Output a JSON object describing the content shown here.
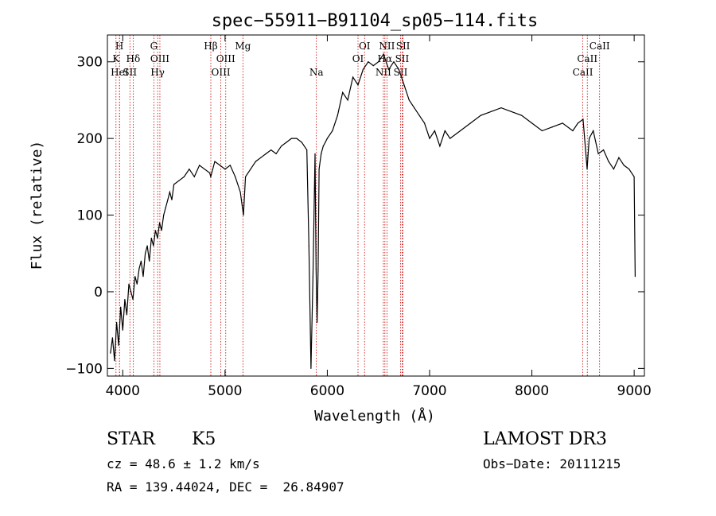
{
  "chart_data": {
    "type": "line",
    "title": "spec−55911−B91104_sp05−114.fits",
    "xlabel": "Wavelength (Å)",
    "ylabel": "Flux (relative)",
    "xlim": [
      3850,
      9100
    ],
    "ylim": [
      -110,
      335
    ],
    "xticks": [
      4000,
      5000,
      6000,
      7000,
      8000,
      9000
    ],
    "yticks": [
      -100,
      0,
      100,
      200,
      300
    ],
    "line_color": "#000000",
    "marker_color": "#cc0000",
    "series": [
      {
        "x": [
          3880,
          3900,
          3920,
          3940,
          3960,
          3980,
          4000,
          4020,
          4040,
          4060,
          4080,
          4100,
          4120,
          4140,
          4160,
          4180,
          4200,
          4220,
          4240,
          4260,
          4280,
          4300,
          4320,
          4340,
          4360,
          4380,
          4400,
          4420,
          4440,
          4460,
          4480,
          4500,
          4550,
          4600,
          4650,
          4700,
          4750,
          4800,
          4850,
          4860,
          4900,
          4950,
          5000,
          5050,
          5100,
          5150,
          5170,
          5180,
          5200,
          5250,
          5300,
          5350,
          5400,
          5450,
          5500,
          5550,
          5600,
          5650,
          5700,
          5750,
          5800,
          5820,
          5840,
          5860,
          5880,
          5890,
          5900,
          5910,
          5920,
          5940,
          5960,
          5980,
          6000,
          6050,
          6100,
          6150,
          6200,
          6250,
          6300,
          6350,
          6400,
          6450,
          6500,
          6550,
          6600,
          6650,
          6700,
          6750,
          6800,
          6850,
          6900,
          6950,
          7000,
          7050,
          7100,
          7150,
          7200,
          7300,
          7400,
          7500,
          7600,
          7700,
          7800,
          7900,
          8000,
          8100,
          8200,
          8300,
          8400,
          8450,
          8500,
          8540,
          8560,
          8600,
          8650,
          8700,
          8750,
          8800,
          8850,
          8900,
          8950,
          9000,
          9010
        ],
        "y": [
          -80,
          -60,
          -90,
          -40,
          -70,
          -20,
          -50,
          -10,
          -30,
          10,
          0,
          -10,
          20,
          10,
          30,
          40,
          20,
          50,
          60,
          40,
          70,
          60,
          80,
          70,
          90,
          80,
          100,
          110,
          120,
          130,
          120,
          140,
          145,
          150,
          160,
          150,
          165,
          160,
          155,
          150,
          170,
          165,
          160,
          165,
          150,
          130,
          110,
          100,
          150,
          160,
          170,
          175,
          180,
          185,
          180,
          190,
          195,
          200,
          200,
          195,
          185,
          60,
          -100,
          20,
          180,
          30,
          -40,
          30,
          160,
          180,
          190,
          195,
          200,
          210,
          230,
          260,
          250,
          280,
          270,
          290,
          300,
          295,
          300,
          310,
          290,
          300,
          290,
          270,
          250,
          240,
          230,
          220,
          200,
          210,
          190,
          210,
          200,
          210,
          220,
          230,
          235,
          240,
          235,
          230,
          220,
          210,
          215,
          220,
          210,
          220,
          225,
          160,
          200,
          210,
          180,
          185,
          170,
          160,
          175,
          165,
          160,
          150,
          20
        ]
      }
    ],
    "line_markers": [
      {
        "x": 3934,
        "row": 2,
        "label": "K"
      },
      {
        "x": 3968,
        "row": 1,
        "label": "H"
      },
      {
        "x": 3969,
        "row": 3,
        "label": "HeI"
      },
      {
        "x": 4070,
        "row": 3,
        "label": "SII"
      },
      {
        "x": 4102,
        "row": 2,
        "label": "Hδ"
      },
      {
        "x": 4304,
        "row": 1,
        "label": "G"
      },
      {
        "x": 4341,
        "row": 3,
        "label": "Hγ"
      },
      {
        "x": 4363,
        "row": 2,
        "label": "OIII"
      },
      {
        "x": 4861,
        "row": 1,
        "label": "Hβ"
      },
      {
        "x": 4959,
        "row": 3,
        "label": "OIII"
      },
      {
        "x": 5007,
        "row": 2,
        "label": "OIII"
      },
      {
        "x": 5175,
        "row": 1,
        "label": "Mg"
      },
      {
        "x": 5893,
        "row": 3,
        "label": "Na"
      },
      {
        "x": 6300,
        "row": 2,
        "label": "OI"
      },
      {
        "x": 6364,
        "row": 1,
        "label": "OI"
      },
      {
        "x": 6548,
        "row": 3,
        "label": "NII"
      },
      {
        "x": 6563,
        "row": 2,
        "label": "Hα"
      },
      {
        "x": 6583,
        "row": 1,
        "label": "NII"
      },
      {
        "x": 6716,
        "row": 3,
        "label": "SII"
      },
      {
        "x": 6731,
        "row": 2,
        "label": "SII"
      },
      {
        "x": 6740,
        "row": 1,
        "label": "SII"
      },
      {
        "x": 8498,
        "row": 3,
        "label": "CaII"
      },
      {
        "x": 8542,
        "row": 2,
        "label": "CaII"
      },
      {
        "x": 8662,
        "row": 1,
        "label": "CaII"
      }
    ]
  },
  "info": {
    "class": "STAR",
    "subclass": "K5",
    "survey": "LAMOST DR3",
    "cz": "cz = 48.6 ± 1.2 km/s",
    "obsdate": "Obs−Date: 20111215",
    "coords": "RA = 139.44024, DEC =  26.84907"
  }
}
